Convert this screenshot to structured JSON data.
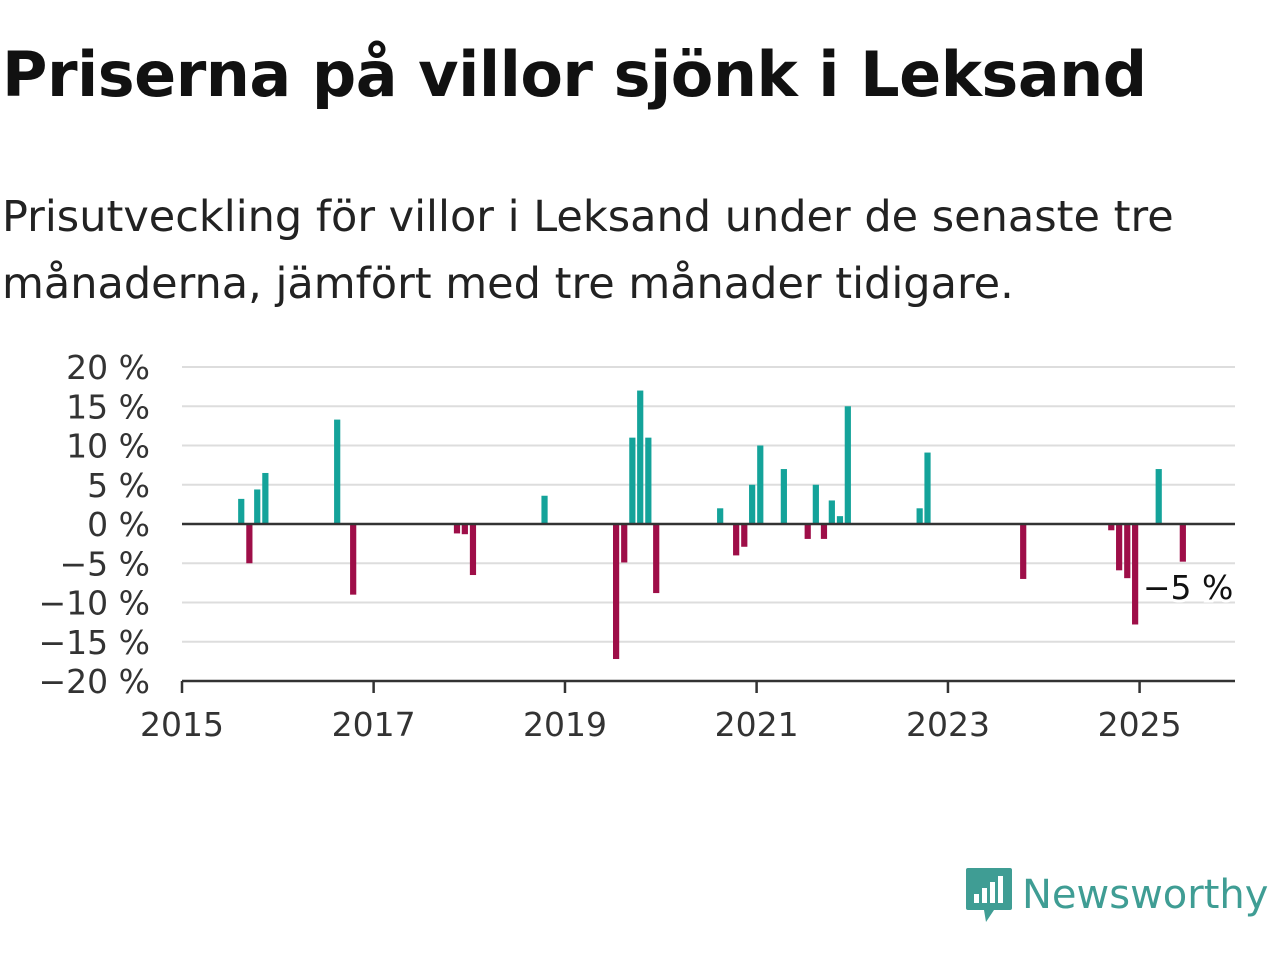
{
  "title": "Priserna på villor sjönk i Leksand",
  "subtitle": "Prisutveckling för villor i Leksand under de senaste tre månaderna, jämfört med tre månader tidigare.",
  "brand": {
    "name": "Newsworthy",
    "icon": "newsworthy-logo-icon",
    "color": "#3f9d94"
  },
  "chart_data": {
    "type": "bar",
    "title": "",
    "xlabel": "",
    "ylabel": "",
    "ylim": [
      -20,
      20
    ],
    "xlim": [
      "2015-01-01",
      "2025-12-31"
    ],
    "y_ticks": [
      20,
      15,
      10,
      5,
      0,
      -5,
      -10,
      -15,
      -20
    ],
    "y_tick_labels": [
      "20 %",
      "15 %",
      "10 %",
      "5 %",
      "0 %",
      "−5 %",
      "−10 %",
      "−15 %",
      "−20 %"
    ],
    "x_tick_labels": [
      "2015",
      "2017",
      "2019",
      "2021",
      "2023",
      "2025"
    ],
    "x_ticks": [
      "2015-01-01",
      "2017-01-01",
      "2019-01-01",
      "2021-01-01",
      "2023-01-01",
      "2025-01-01"
    ],
    "grid": true,
    "colors": {
      "positive": "#14a39a",
      "negative": "#9e0e48",
      "grid": "#dddddd",
      "axis": "#333333"
    },
    "annotation": {
      "date": "2025-06",
      "value": -5,
      "text": "−5 %"
    },
    "series": [
      {
        "dates": [
          "2015-08",
          "2015-09",
          "2015-10",
          "2015-11",
          "2016-08",
          "2016-10",
          "2017-11",
          "2017-12",
          "2018-01",
          "2018-10",
          "2019-07",
          "2019-08",
          "2019-09",
          "2019-10",
          "2019-11",
          "2019-12",
          "2020-08",
          "2020-10",
          "2020-11",
          "2020-12",
          "2021-01",
          "2021-04",
          "2021-07",
          "2021-08",
          "2021-09",
          "2021-10",
          "2021-11",
          "2021-12",
          "2022-09",
          "2022-10",
          "2023-10",
          "2024-09",
          "2024-10",
          "2024-11",
          "2024-12",
          "2025-03",
          "2025-06"
        ],
        "values": [
          3.2,
          -5,
          4.4,
          6.5,
          13.3,
          -9,
          -1.2,
          -1.3,
          -6.5,
          3.6,
          -17.2,
          -4.9,
          11,
          17,
          11,
          -8.8,
          2,
          -4,
          -2.9,
          5,
          10,
          7,
          -1.9,
          5,
          -1.9,
          3,
          1,
          15,
          2,
          9.1,
          -7,
          -0.8,
          -5.9,
          -6.9,
          -12.8,
          7,
          -4.8
        ]
      }
    ]
  }
}
